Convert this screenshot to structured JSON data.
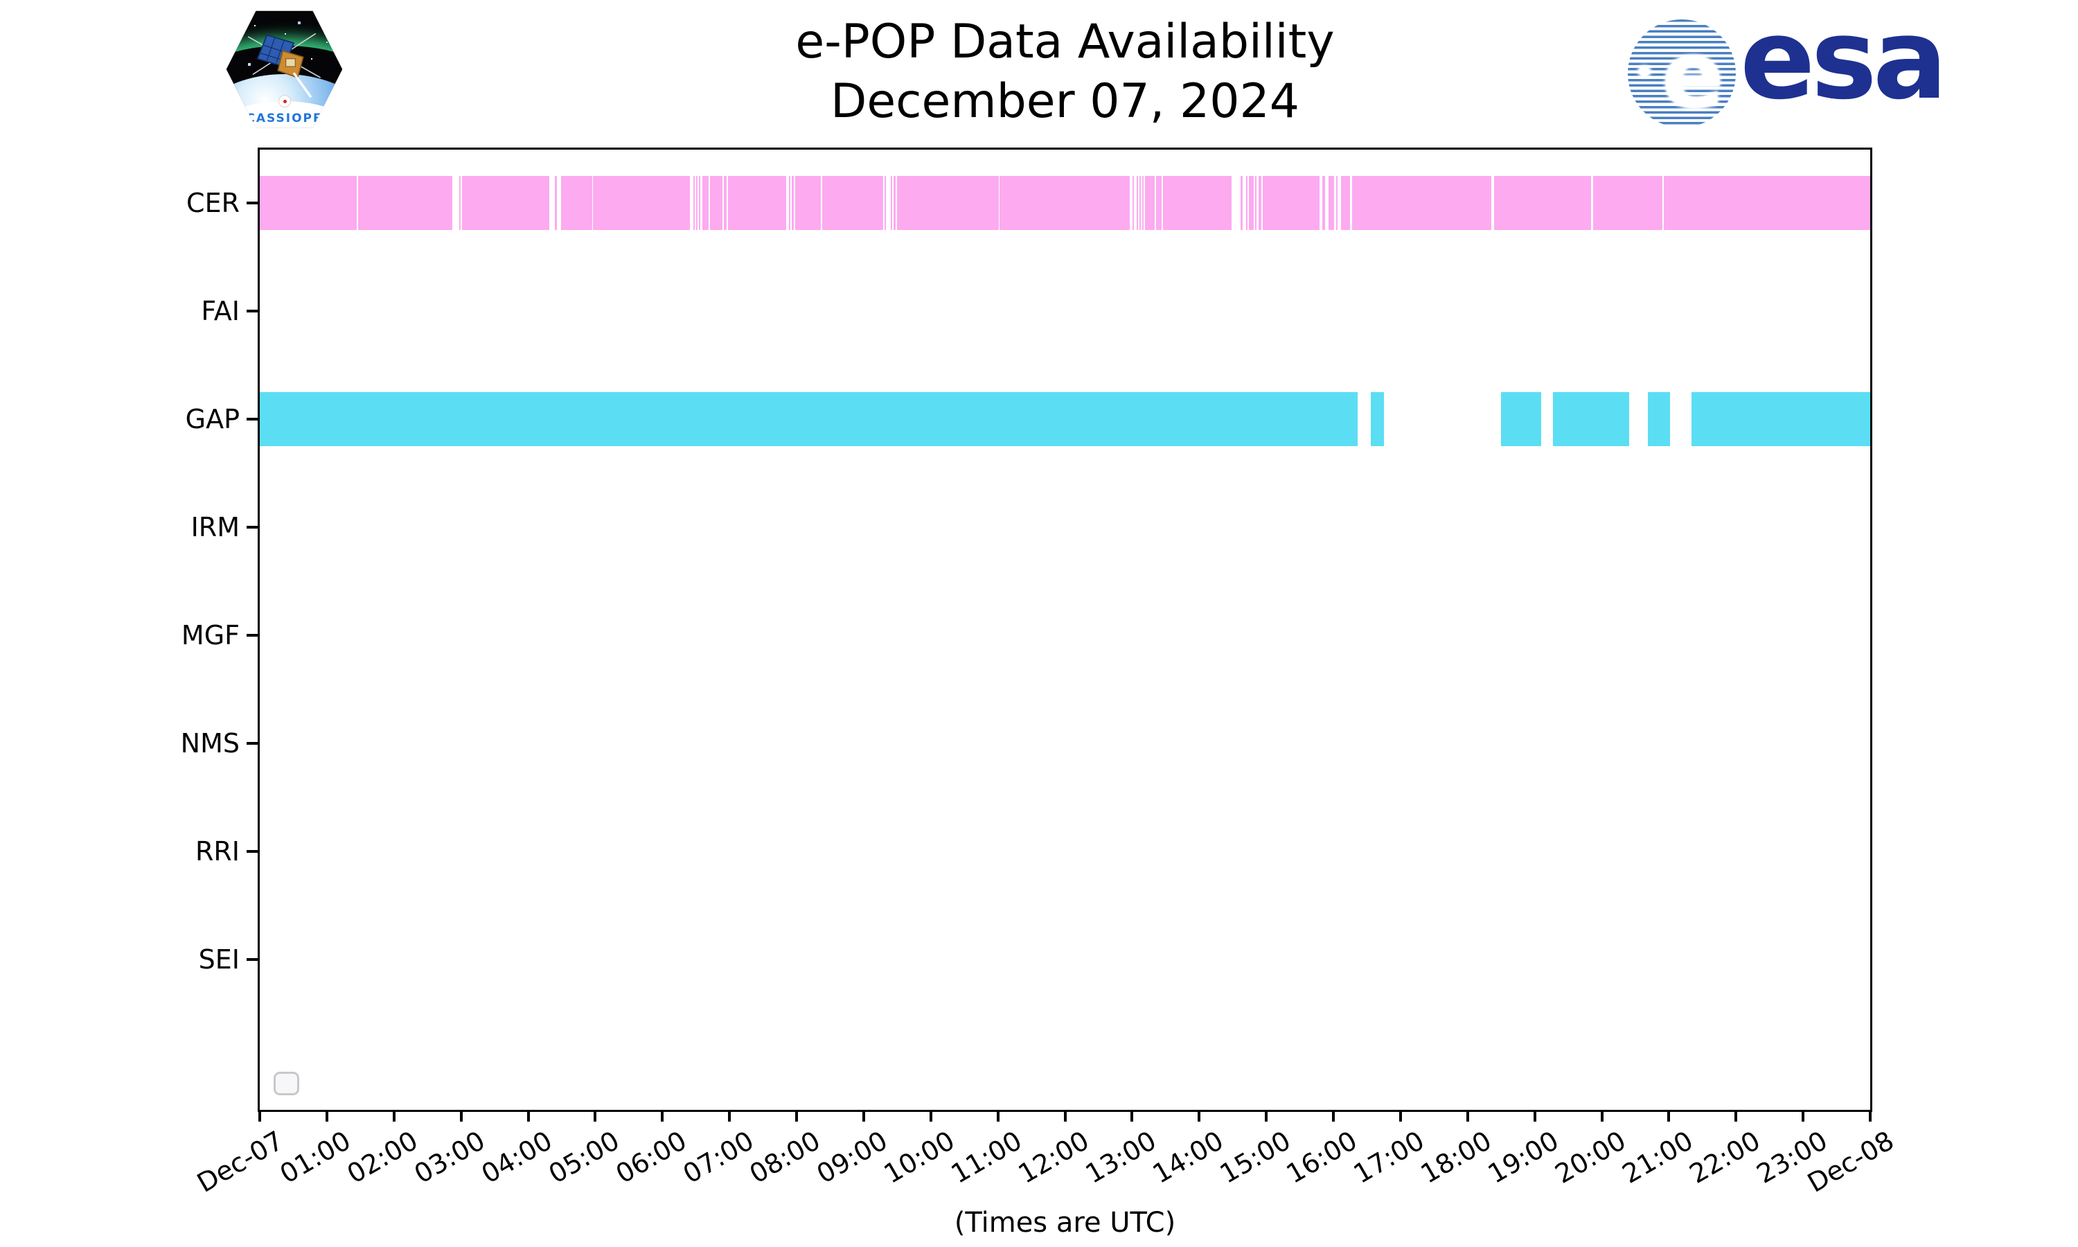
{
  "header": {
    "title_line1": "e-POP Data Availability",
    "title_line2": "December 07, 2024"
  },
  "cassiope": {
    "label": "CASSIOPE"
  },
  "esa": {
    "wordmark": "esa",
    "globe_letter": "e"
  },
  "legend": {
    "placeholder_box": true
  },
  "chart_data": {
    "type": "timeline-availability",
    "title": "e-POP Data Availability",
    "subtitle": "December 07, 2024",
    "xlabel": "(Times are UTC)",
    "x_range_hours": [
      0,
      24
    ],
    "x_tick_labels": [
      "Dec-07",
      "01:00",
      "02:00",
      "03:00",
      "04:00",
      "05:00",
      "06:00",
      "07:00",
      "08:00",
      "09:00",
      "10:00",
      "11:00",
      "12:00",
      "13:00",
      "14:00",
      "15:00",
      "16:00",
      "17:00",
      "18:00",
      "19:00",
      "20:00",
      "21:00",
      "22:00",
      "23:00",
      "Dec-08"
    ],
    "instruments": [
      "CER",
      "FAI",
      "GAP",
      "IRM",
      "MGF",
      "NMS",
      "RRI",
      "SEI"
    ],
    "colors": {
      "CER": "#fdaaf0",
      "GAP": "#5bdef3"
    },
    "series": [
      {
        "name": "CER",
        "color": "#fdaaf0",
        "segments_hours": [
          [
            0,
            1.44
          ],
          [
            1.47,
            2.87
          ],
          [
            2.97,
            2.99
          ],
          [
            3.01,
            4.31
          ],
          [
            4.4,
            4.43
          ],
          [
            4.49,
            4.95
          ],
          [
            4.97,
            6.41
          ],
          [
            6.46,
            6.48
          ],
          [
            6.5,
            6.52
          ],
          [
            6.54,
            6.56
          ],
          [
            6.6,
            6.69
          ],
          [
            6.71,
            6.9
          ],
          [
            6.92,
            6.96
          ],
          [
            6.98,
            7.84
          ],
          [
            7.89,
            7.91
          ],
          [
            7.93,
            7.96
          ],
          [
            7.98,
            8.36
          ],
          [
            8.38,
            9.29
          ],
          [
            9.31,
            9.33
          ],
          [
            9.4,
            9.42
          ],
          [
            9.44,
            9.48
          ],
          [
            9.5,
            11.01
          ],
          [
            11.02,
            12.96
          ],
          [
            13.01,
            13.03
          ],
          [
            13.07,
            13.09
          ],
          [
            13.11,
            13.13
          ],
          [
            13.15,
            13.17
          ],
          [
            13.19,
            13.34
          ],
          [
            13.36,
            13.44
          ],
          [
            13.46,
            14.48
          ],
          [
            14.62,
            14.65
          ],
          [
            14.7,
            14.72
          ],
          [
            14.74,
            14.81
          ],
          [
            14.83,
            14.85
          ],
          [
            14.88,
            14.93
          ],
          [
            14.95,
            15.79
          ],
          [
            15.83,
            15.88
          ],
          [
            15.93,
            16.01
          ],
          [
            16.04,
            16.06
          ],
          [
            16.11,
            16.25
          ],
          [
            16.28,
            18.35
          ],
          [
            18.39,
            19.84
          ],
          [
            19.87,
            20.9
          ],
          [
            20.92,
            24
          ]
        ]
      },
      {
        "name": "FAI",
        "color": null,
        "segments_hours": []
      },
      {
        "name": "GAP",
        "color": "#5bdef3",
        "segments_hours": [
          [
            0,
            16.36
          ],
          [
            16.56,
            16.75
          ],
          [
            18.5,
            19.1
          ],
          [
            19.27,
            20.41
          ],
          [
            20.69,
            21.02
          ],
          [
            21.34,
            24
          ]
        ]
      },
      {
        "name": "IRM",
        "color": null,
        "segments_hours": []
      },
      {
        "name": "MGF",
        "color": null,
        "segments_hours": []
      },
      {
        "name": "NMS",
        "color": null,
        "segments_hours": []
      },
      {
        "name": "RRI",
        "color": null,
        "segments_hours": []
      },
      {
        "name": "SEI",
        "color": null,
        "segments_hours": []
      }
    ],
    "layout": {
      "grid": false,
      "legend_position": "lower-left-empty-box"
    }
  }
}
